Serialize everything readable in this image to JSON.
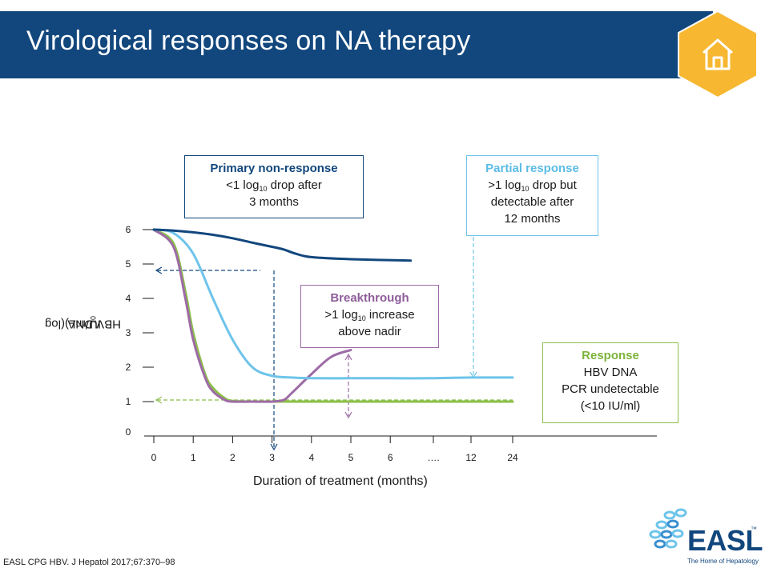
{
  "slide": {
    "title": "Virological responses on NA therapy",
    "footer": "EASL CPG HBV. J Hepatol 2017;67:370–98",
    "logo_text": "EASL",
    "logo_tm": "™",
    "logo_tagline": "The Home of Hepatology",
    "home_icon": "home-icon",
    "colors": {
      "title_bar": "#12477d",
      "badge": "#f7b731",
      "primary_non_response": "#12477d",
      "partial_response": "#6ec4ea",
      "breakthrough": "#9d6ba6",
      "response": "#8dbf4a"
    }
  },
  "chart_data": {
    "type": "line",
    "xlabel": "Duration of treatment (months)",
    "ylabel_prefix": "HBV DNA (log",
    "ylabel_sub": "10",
    "ylabel_suffix": " IU/mL)",
    "x_ticks": [
      "0",
      "1",
      "2",
      "3",
      "4",
      "5",
      "6",
      "….",
      "12",
      "24"
    ],
    "y_ticks": [
      "0",
      "1",
      "2",
      "3",
      "4",
      "5",
      "6"
    ],
    "ylim": [
      0,
      6
    ],
    "grid": false,
    "series": [
      {
        "name": "Primary non-response",
        "color": "#12477d",
        "x": [
          0,
          0.5,
          1,
          1.5,
          2,
          2.5,
          3,
          3.3,
          3.6,
          4,
          5,
          6.5
        ],
        "y": [
          6.0,
          5.97,
          5.92,
          5.85,
          5.75,
          5.62,
          5.5,
          5.42,
          5.3,
          5.2,
          5.14,
          5.1
        ]
      },
      {
        "name": "Partial response",
        "color": "#6ec4ea",
        "x": [
          0,
          0.5,
          1,
          1.5,
          2,
          2.5,
          3,
          3.5,
          4,
          5,
          6,
          7,
          8,
          9
        ],
        "y": [
          6.0,
          5.9,
          5.3,
          4.0,
          2.8,
          2.0,
          1.75,
          1.7,
          1.68,
          1.68,
          1.68,
          1.68,
          1.7,
          1.7
        ]
      },
      {
        "name": "Breakthrough",
        "color": "#9d6ba6",
        "x": [
          0,
          0.5,
          0.8,
          1,
          1.3,
          1.5,
          1.8,
          2,
          2.5,
          3,
          3.3,
          3.5,
          4,
          4.5,
          5
        ],
        "y": [
          6.0,
          5.5,
          4.0,
          2.8,
          1.7,
          1.3,
          1.05,
          1.0,
          1.0,
          1.0,
          1.05,
          1.25,
          1.8,
          2.3,
          2.5
        ]
      },
      {
        "name": "Response",
        "color": "#8dbf4a",
        "x": [
          0,
          0.5,
          0.8,
          1,
          1.3,
          1.5,
          1.8,
          2,
          2.5,
          3,
          4,
          5,
          6,
          7,
          8,
          9
        ],
        "y": [
          6.0,
          5.6,
          4.2,
          3.0,
          1.8,
          1.4,
          1.1,
          1.02,
          1.0,
          1.0,
          1.0,
          1.0,
          1.0,
          1.0,
          1.0,
          1.0
        ]
      }
    ],
    "annotations": {
      "primary_non_response": {
        "title": "Primary non-response",
        "line2_a": "<1 log",
        "line2_sub": "10",
        "line2_b": " drop after",
        "line3": "3 months"
      },
      "partial_response": {
        "title": "Partial response",
        "line2_a": ">1 log",
        "line2_sub": "10",
        "line2_b": " drop but",
        "line3": "detectable after",
        "line4": "12 months"
      },
      "breakthrough": {
        "title": "Breakthrough",
        "line2_a": ">1 log",
        "line2_sub": "10",
        "line2_b": " increase",
        "line3": "above nadir"
      },
      "response": {
        "title": "Response",
        "line2": "HBV DNA",
        "line3": "PCR undetectable",
        "line4": "(<10 IU/ml)"
      }
    }
  }
}
